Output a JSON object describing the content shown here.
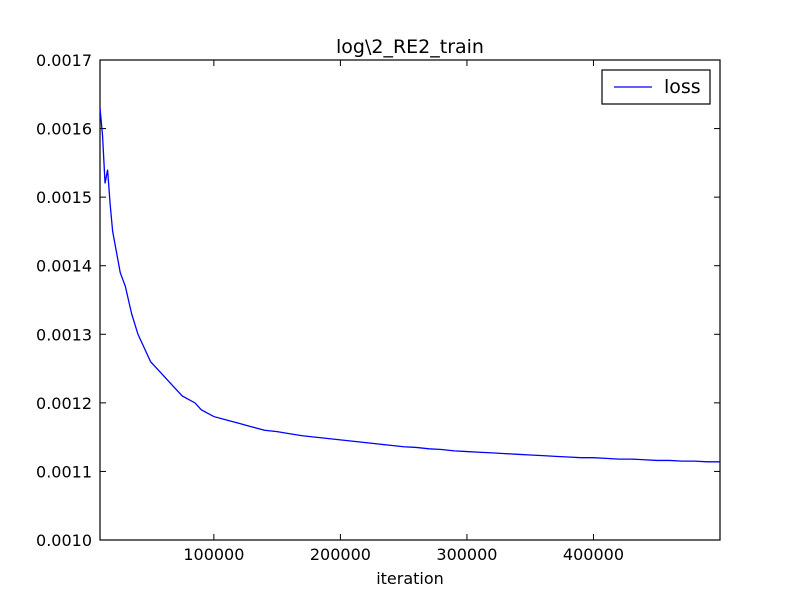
{
  "chart_data": {
    "type": "line",
    "title": "log\\2_RE2_train",
    "xlabel": "iteration",
    "ylabel": "",
    "xlim": [
      10000,
      500000
    ],
    "ylim": [
      0.001,
      0.0017
    ],
    "x_ticks": [
      100000,
      200000,
      300000,
      400000
    ],
    "x_tick_labels": [
      "100000",
      "200000",
      "300000",
      "400000"
    ],
    "y_ticks": [
      0.001,
      0.0011,
      0.0012,
      0.0013,
      0.0014,
      0.0015,
      0.0016,
      0.0017
    ],
    "y_tick_labels": [
      "0.0010",
      "0.0011",
      "0.0012",
      "0.0013",
      "0.0014",
      "0.0015",
      "0.0016",
      "0.0017"
    ],
    "grid": false,
    "legend": {
      "position": "top-right",
      "entries": [
        "loss"
      ]
    },
    "series": [
      {
        "name": "loss",
        "color": "#0000ff",
        "x": [
          10000,
          12000,
          14000,
          16000,
          18000,
          20000,
          22000,
          24000,
          26000,
          28000,
          30000,
          35000,
          40000,
          45000,
          50000,
          55000,
          60000,
          65000,
          70000,
          75000,
          80000,
          85000,
          90000,
          95000,
          100000,
          110000,
          120000,
          130000,
          140000,
          150000,
          160000,
          170000,
          180000,
          190000,
          200000,
          210000,
          220000,
          230000,
          240000,
          250000,
          260000,
          270000,
          280000,
          290000,
          300000,
          310000,
          320000,
          330000,
          340000,
          350000,
          360000,
          370000,
          380000,
          390000,
          400000,
          410000,
          420000,
          430000,
          440000,
          450000,
          460000,
          470000,
          480000,
          490000,
          500000
        ],
        "y": [
          0.00163,
          0.00159,
          0.00152,
          0.00154,
          0.00149,
          0.00145,
          0.00143,
          0.00141,
          0.00139,
          0.00138,
          0.00137,
          0.00133,
          0.0013,
          0.00128,
          0.00126,
          0.00125,
          0.00124,
          0.00123,
          0.00122,
          0.00121,
          0.001205,
          0.0012,
          0.00119,
          0.001185,
          0.00118,
          0.001175,
          0.00117,
          0.001165,
          0.00116,
          0.001158,
          0.001155,
          0.001152,
          0.00115,
          0.001148,
          0.001146,
          0.001144,
          0.001142,
          0.00114,
          0.001138,
          0.001136,
          0.001135,
          0.001133,
          0.001132,
          0.00113,
          0.001129,
          0.001128,
          0.001127,
          0.001126,
          0.001125,
          0.001124,
          0.001123,
          0.001122,
          0.001121,
          0.00112,
          0.00112,
          0.001119,
          0.001118,
          0.001118,
          0.001117,
          0.001116,
          0.001116,
          0.001115,
          0.001115,
          0.001114,
          0.001114
        ]
      }
    ]
  }
}
